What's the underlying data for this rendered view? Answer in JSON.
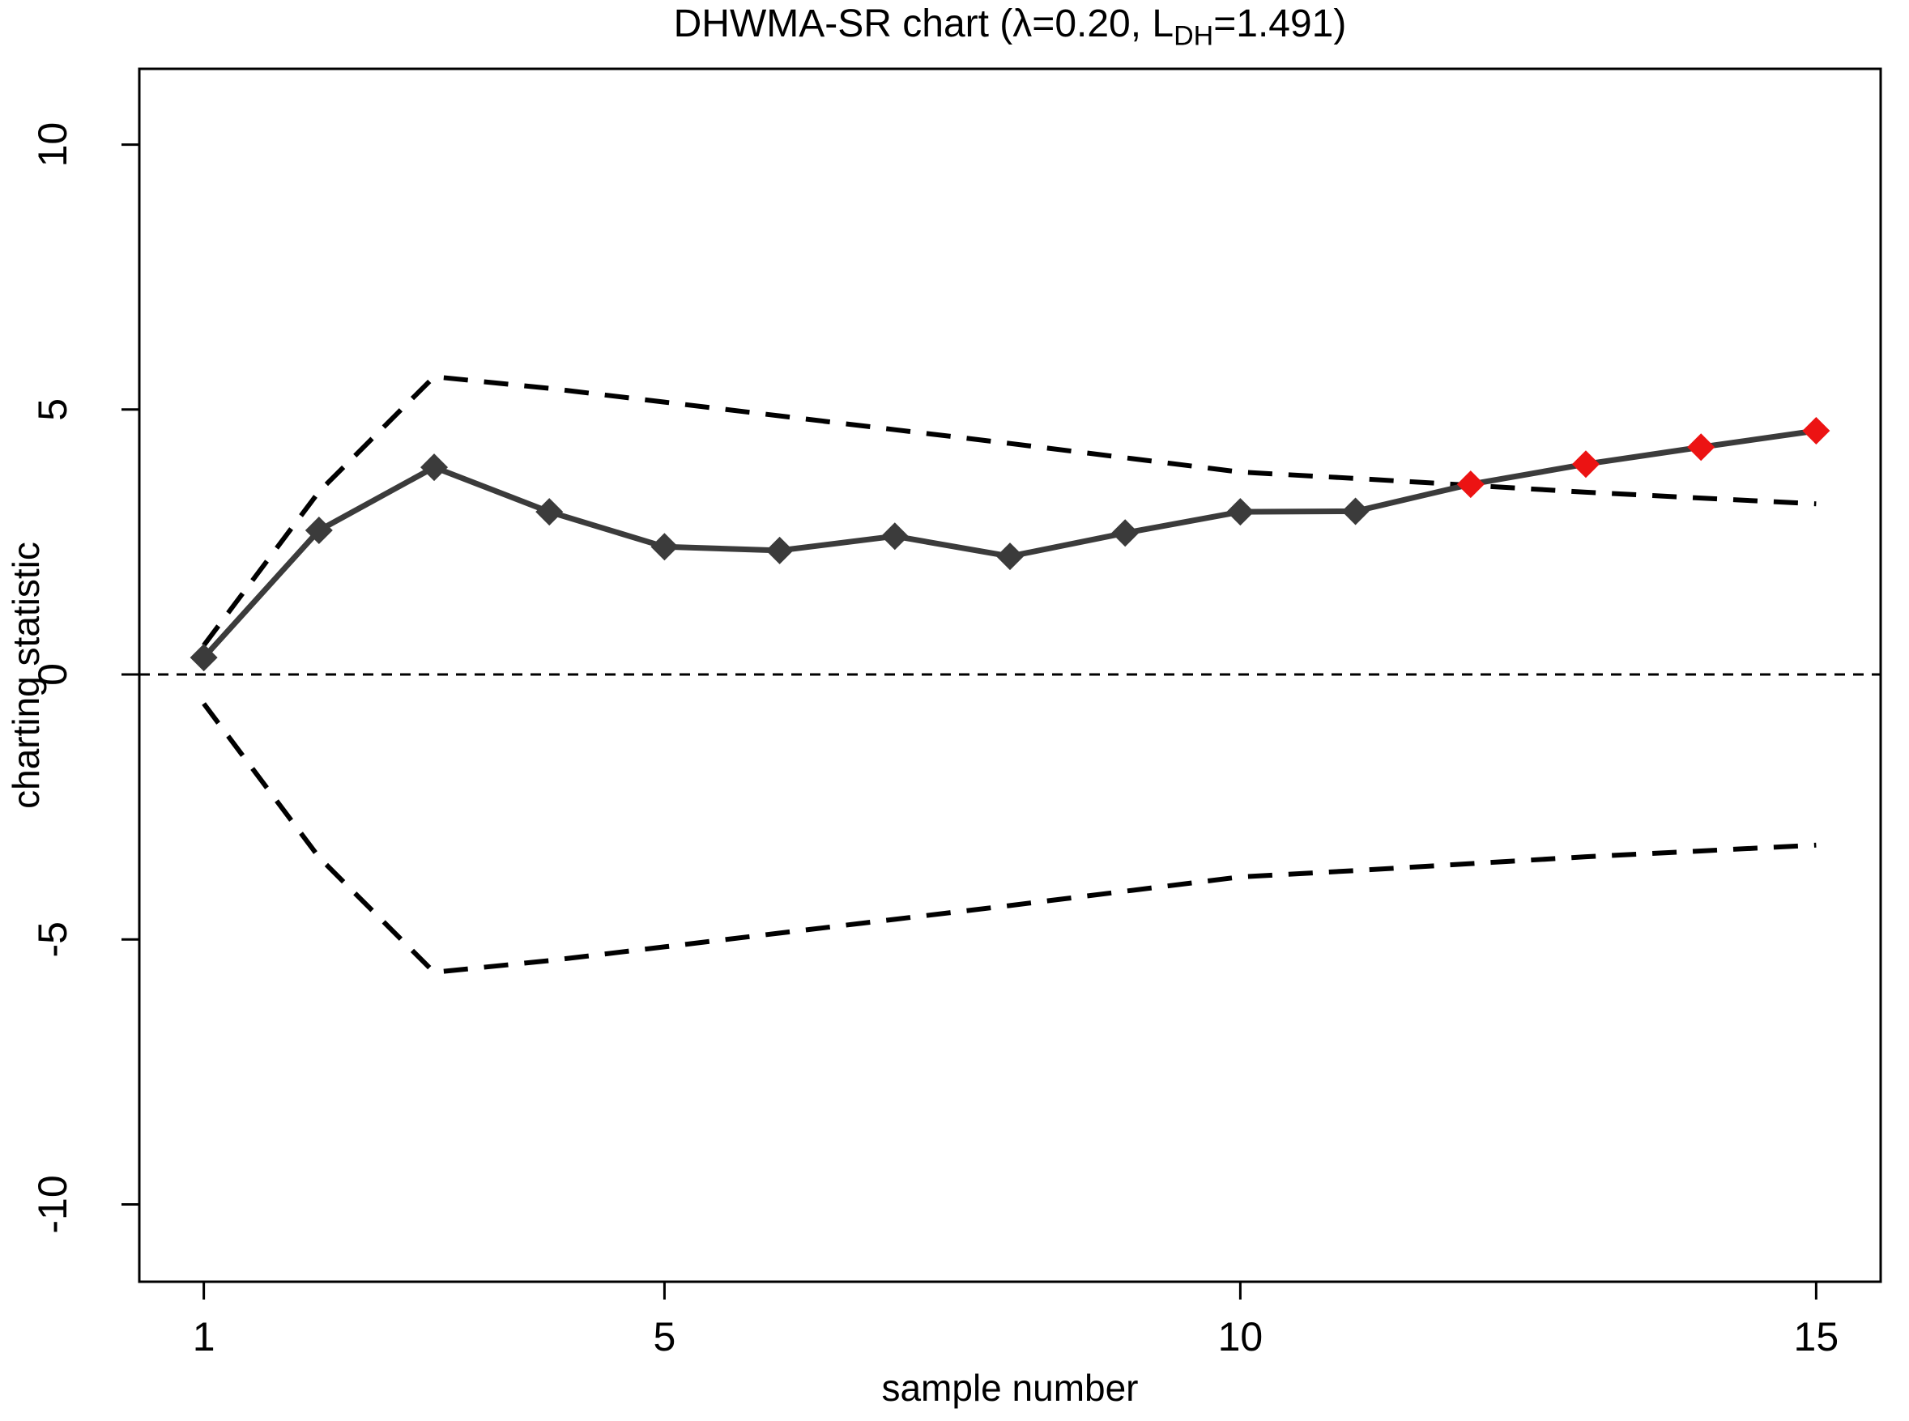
{
  "chart_data": {
    "type": "line",
    "title": "DHWMA-SR chart (λ=0.20, L_DH=1.491)",
    "title_parts": {
      "prefix": "DHWMA-SR chart (λ=0.20, L",
      "subscript": "DH",
      "suffix": "=1.491)"
    },
    "xlabel": "sample number",
    "ylabel": "charting statistic",
    "x_ticks": [
      1,
      5,
      10,
      15
    ],
    "y_ticks": [
      -10,
      -5,
      0,
      5,
      10
    ],
    "xlim": [
      0.44,
      15.56
    ],
    "ylim": [
      -11.46,
      11.43
    ],
    "x": [
      1,
      2,
      3,
      4,
      5,
      6,
      7,
      8,
      9,
      10,
      11,
      12,
      13,
      14,
      15
    ],
    "series": [
      {
        "name": "charting statistic",
        "style": "solid-line-diamond-markers",
        "values": [
          0.32,
          2.72,
          3.91,
          3.07,
          2.41,
          2.34,
          2.61,
          2.23,
          2.67,
          3.07,
          3.08,
          3.59,
          3.97,
          4.29,
          4.6
        ]
      },
      {
        "name": "upper control limit",
        "style": "dashed",
        "values": [
          0.55,
          3.45,
          5.62,
          5.4,
          5.14,
          4.88,
          4.62,
          4.36,
          4.09,
          3.82,
          3.7,
          3.57,
          3.44,
          3.33,
          3.22
        ]
      },
      {
        "name": "lower control limit",
        "style": "dashed",
        "values": [
          -0.55,
          -3.45,
          -5.62,
          -5.4,
          -5.14,
          -4.88,
          -4.62,
          -4.36,
          -4.09,
          -3.82,
          -3.7,
          -3.57,
          -3.44,
          -3.33,
          -3.22
        ]
      },
      {
        "name": "center line",
        "style": "dotted",
        "value": 0
      }
    ],
    "out_of_control_samples": [
      12,
      13,
      14,
      15
    ],
    "legend_position": "none",
    "grid": false,
    "colors": {
      "in_control_point": "#3b3b3b",
      "out_of_control_point": "#ec1313",
      "series_line": "#3b3b3b",
      "limit_line": "#000000",
      "center_line": "#000000",
      "background": "#ffffff",
      "box": "#000000"
    }
  }
}
